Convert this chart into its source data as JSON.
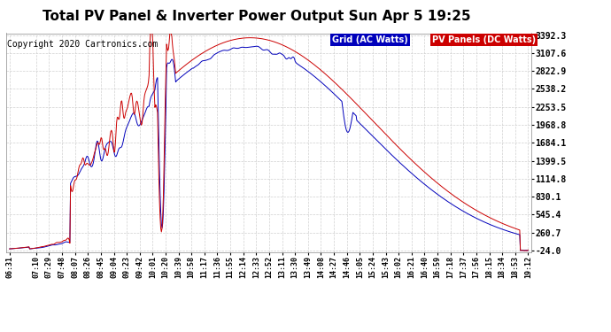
{
  "title": "Total PV Panel & Inverter Power Output Sun Apr 5 19:25",
  "copyright": "Copyright 2020 Cartronics.com",
  "legend_labels": [
    "Grid (AC Watts)",
    "PV Panels (DC Watts)"
  ],
  "legend_colors": [
    "#0000bb",
    "#cc0000"
  ],
  "legend_bg_colors": [
    "#0000bb",
    "#cc0000"
  ],
  "grid_color": "#0000bb",
  "pv_color": "#cc0000",
  "yticks": [
    3392.3,
    3107.6,
    2822.9,
    2538.2,
    2253.5,
    1968.8,
    1684.1,
    1399.5,
    1114.8,
    830.1,
    545.4,
    260.7,
    -24.0
  ],
  "ymin": -24.0,
  "ymax": 3392.3,
  "background_color": "#ffffff",
  "plot_bg_color": "#ffffff",
  "title_fontsize": 11,
  "copyright_fontsize": 7,
  "x_labels": [
    "06:31",
    "07:10",
    "07:29",
    "07:48",
    "08:07",
    "08:26",
    "08:45",
    "09:04",
    "09:23",
    "09:42",
    "10:01",
    "10:20",
    "10:39",
    "10:58",
    "11:17",
    "11:36",
    "11:55",
    "12:14",
    "12:33",
    "12:52",
    "13:11",
    "13:30",
    "13:49",
    "14:08",
    "14:27",
    "14:46",
    "15:05",
    "15:24",
    "15:43",
    "16:02",
    "16:21",
    "16:40",
    "16:59",
    "17:18",
    "17:37",
    "17:56",
    "18:15",
    "18:34",
    "18:53",
    "19:12"
  ]
}
